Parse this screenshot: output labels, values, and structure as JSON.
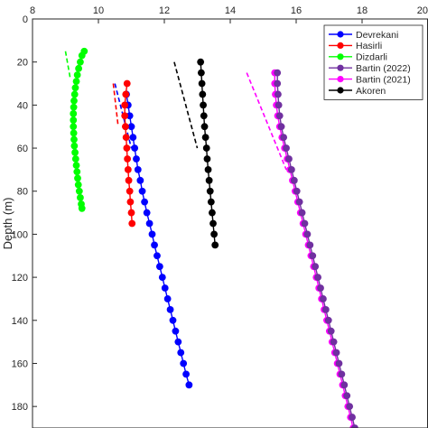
{
  "chart_data": {
    "type": "line",
    "title": "",
    "xlabel": "",
    "ylabel": "Depth (m)",
    "xlim": [
      8,
      20
    ],
    "ylim": [
      0,
      190
    ],
    "y_reversed": true,
    "x_axis_position": "top",
    "x_ticks": [
      8,
      10,
      12,
      14,
      16,
      18,
      20
    ],
    "y_ticks": [
      0,
      20,
      40,
      60,
      80,
      100,
      120,
      140,
      160,
      180
    ],
    "grid": false,
    "legend_position": "top-right",
    "series": [
      {
        "name": "Devrekani",
        "color": "#0000ff",
        "points": [
          [
            10.85,
            35
          ],
          [
            10.9,
            40
          ],
          [
            10.95,
            45
          ],
          [
            11.0,
            50
          ],
          [
            11.05,
            55
          ],
          [
            11.1,
            60
          ],
          [
            11.15,
            65
          ],
          [
            11.2,
            70
          ],
          [
            11.27,
            75
          ],
          [
            11.33,
            80
          ],
          [
            11.4,
            85
          ],
          [
            11.47,
            90
          ],
          [
            11.55,
            95
          ],
          [
            11.63,
            100
          ],
          [
            11.7,
            105
          ],
          [
            11.78,
            110
          ],
          [
            11.86,
            115
          ],
          [
            11.94,
            120
          ],
          [
            12.02,
            125
          ],
          [
            12.1,
            130
          ],
          [
            12.18,
            135
          ],
          [
            12.26,
            140
          ],
          [
            12.34,
            145
          ],
          [
            12.42,
            150
          ],
          [
            12.5,
            155
          ],
          [
            12.58,
            160
          ],
          [
            12.66,
            165
          ],
          [
            12.75,
            170
          ]
        ],
        "trend": [
          [
            10.5,
            30
          ],
          [
            11.0,
            60
          ]
        ]
      },
      {
        "name": "Hasirli",
        "color": "#ff0000",
        "points": [
          [
            10.87,
            30
          ],
          [
            10.83,
            35
          ],
          [
            10.8,
            40
          ],
          [
            10.8,
            45
          ],
          [
            10.82,
            50
          ],
          [
            10.84,
            55
          ],
          [
            10.86,
            60
          ],
          [
            10.88,
            65
          ],
          [
            10.9,
            70
          ],
          [
            10.92,
            75
          ],
          [
            10.95,
            80
          ],
          [
            10.97,
            85
          ],
          [
            11.0,
            90
          ],
          [
            11.02,
            95
          ]
        ],
        "trend": [
          [
            10.45,
            30
          ],
          [
            10.6,
            50
          ]
        ]
      },
      {
        "name": "Dizdarli",
        "color": "#00ff00",
        "points": [
          [
            9.57,
            15
          ],
          [
            9.5,
            17
          ],
          [
            9.45,
            20
          ],
          [
            9.4,
            23
          ],
          [
            9.36,
            26
          ],
          [
            9.33,
            29
          ],
          [
            9.3,
            32
          ],
          [
            9.28,
            35
          ],
          [
            9.26,
            38
          ],
          [
            9.25,
            41
          ],
          [
            9.24,
            44
          ],
          [
            9.24,
            47
          ],
          [
            9.24,
            50
          ],
          [
            9.25,
            53
          ],
          [
            9.26,
            56
          ],
          [
            9.27,
            59
          ],
          [
            9.29,
            62
          ],
          [
            9.31,
            65
          ],
          [
            9.33,
            68
          ],
          [
            9.35,
            71
          ],
          [
            9.37,
            74
          ],
          [
            9.39,
            77
          ],
          [
            9.42,
            80
          ],
          [
            9.45,
            83
          ],
          [
            9.48,
            86
          ],
          [
            9.5,
            88
          ]
        ],
        "trend": [
          [
            9.0,
            15
          ],
          [
            9.15,
            28
          ]
        ]
      },
      {
        "name": "Bartin (2022)",
        "color": "#7030a0",
        "points": [
          [
            15.43,
            25
          ],
          [
            15.43,
            30
          ],
          [
            15.45,
            35
          ],
          [
            15.47,
            40
          ],
          [
            15.5,
            45
          ],
          [
            15.55,
            50
          ],
          [
            15.62,
            55
          ],
          [
            15.7,
            60
          ],
          [
            15.78,
            65
          ],
          [
            15.86,
            70
          ],
          [
            15.94,
            75
          ],
          [
            16.02,
            80
          ],
          [
            16.1,
            85
          ],
          [
            16.18,
            90
          ],
          [
            16.26,
            95
          ],
          [
            16.34,
            100
          ],
          [
            16.42,
            105
          ],
          [
            16.5,
            110
          ],
          [
            16.58,
            115
          ],
          [
            16.66,
            120
          ],
          [
            16.74,
            125
          ],
          [
            16.82,
            130
          ],
          [
            16.9,
            135
          ],
          [
            16.98,
            140
          ],
          [
            17.06,
            145
          ],
          [
            17.14,
            150
          ],
          [
            17.22,
            155
          ],
          [
            17.3,
            160
          ],
          [
            17.38,
            165
          ],
          [
            17.46,
            170
          ],
          [
            17.54,
            175
          ],
          [
            17.62,
            180
          ],
          [
            17.7,
            185
          ],
          [
            17.78,
            190
          ]
        ],
        "trend": []
      },
      {
        "name": "Bartin (2021)",
        "color": "#ff00ff",
        "points": [
          [
            15.35,
            25
          ],
          [
            15.35,
            30
          ],
          [
            15.37,
            35
          ],
          [
            15.4,
            40
          ],
          [
            15.44,
            45
          ],
          [
            15.5,
            50
          ],
          [
            15.57,
            55
          ],
          [
            15.65,
            60
          ],
          [
            15.73,
            65
          ],
          [
            15.81,
            70
          ],
          [
            15.89,
            75
          ],
          [
            15.97,
            80
          ],
          [
            16.05,
            85
          ],
          [
            16.13,
            90
          ],
          [
            16.21,
            95
          ],
          [
            16.29,
            100
          ],
          [
            16.37,
            105
          ],
          [
            16.45,
            110
          ],
          [
            16.53,
            115
          ],
          [
            16.61,
            120
          ],
          [
            16.69,
            125
          ],
          [
            16.77,
            130
          ],
          [
            16.85,
            135
          ],
          [
            16.93,
            140
          ],
          [
            17.01,
            145
          ],
          [
            17.09,
            150
          ],
          [
            17.17,
            155
          ],
          [
            17.25,
            160
          ],
          [
            17.33,
            165
          ],
          [
            17.41,
            170
          ],
          [
            17.49,
            175
          ],
          [
            17.57,
            180
          ],
          [
            17.65,
            185
          ],
          [
            17.73,
            190
          ]
        ],
        "trend": [
          [
            14.5,
            25
          ],
          [
            15.7,
            70
          ]
        ]
      },
      {
        "name": "Akoren",
        "color": "#000000",
        "points": [
          [
            13.1,
            20
          ],
          [
            13.12,
            25
          ],
          [
            13.14,
            30
          ],
          [
            13.16,
            35
          ],
          [
            13.18,
            40
          ],
          [
            13.2,
            45
          ],
          [
            13.22,
            50
          ],
          [
            13.25,
            55
          ],
          [
            13.28,
            60
          ],
          [
            13.3,
            65
          ],
          [
            13.33,
            70
          ],
          [
            13.36,
            75
          ],
          [
            13.39,
            80
          ],
          [
            13.42,
            85
          ],
          [
            13.45,
            90
          ],
          [
            13.48,
            95
          ],
          [
            13.51,
            100
          ],
          [
            13.54,
            105
          ]
        ],
        "trend": [
          [
            12.3,
            20
          ],
          [
            13.0,
            60
          ]
        ]
      }
    ]
  }
}
